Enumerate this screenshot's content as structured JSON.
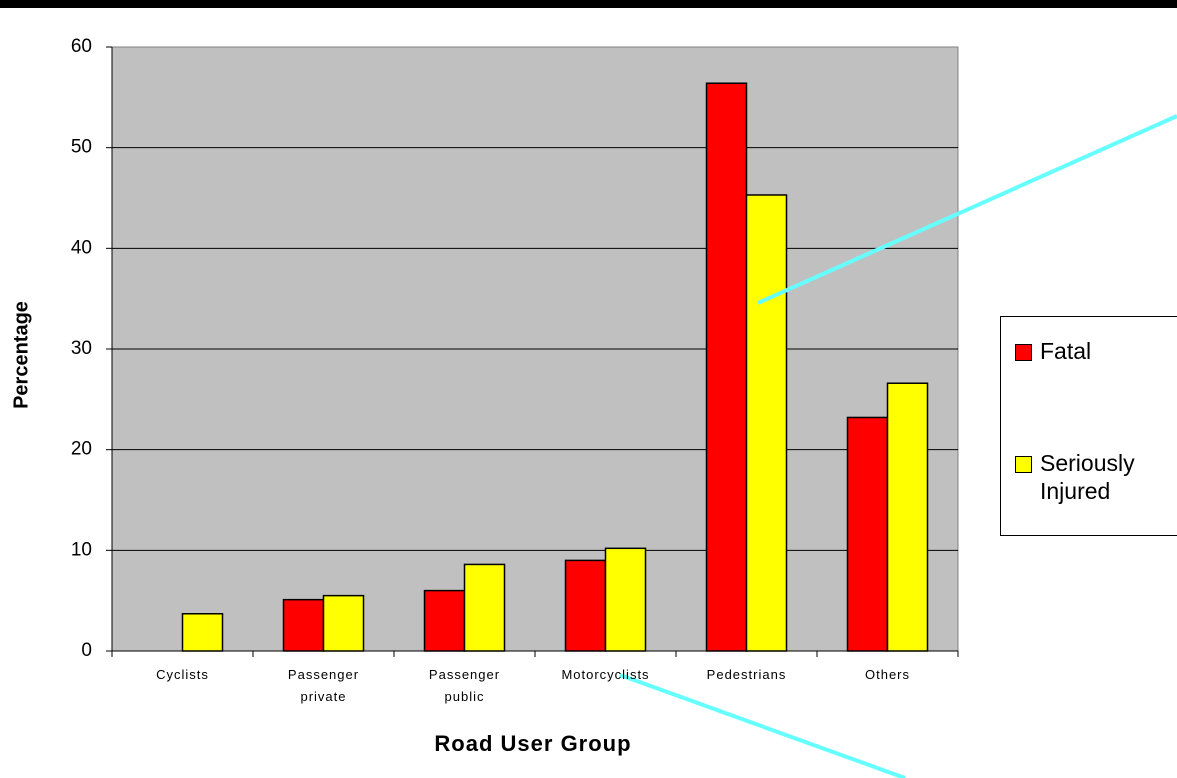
{
  "chart_data": {
    "type": "bar",
    "x_label": "Road User Group",
    "y_label": "Percentage",
    "categories": [
      "Cyclists",
      "Passenger private",
      "Passenger public",
      "Motorcyclists",
      "Pedestrians",
      "Others"
    ],
    "series": [
      {
        "name": "Fatal",
        "color": "#ff0000",
        "values": [
          0,
          5.1,
          6.0,
          9.0,
          56.4,
          23.2
        ]
      },
      {
        "name": "Seriously Injured",
        "color": "#ffff00",
        "values": [
          3.7,
          5.5,
          8.6,
          10.2,
          45.3,
          26.6
        ]
      }
    ],
    "ylim": [
      0,
      60
    ],
    "yticks": [
      0,
      10,
      20,
      30,
      40,
      50,
      60
    ],
    "grid": true,
    "legend": "right"
  }
}
